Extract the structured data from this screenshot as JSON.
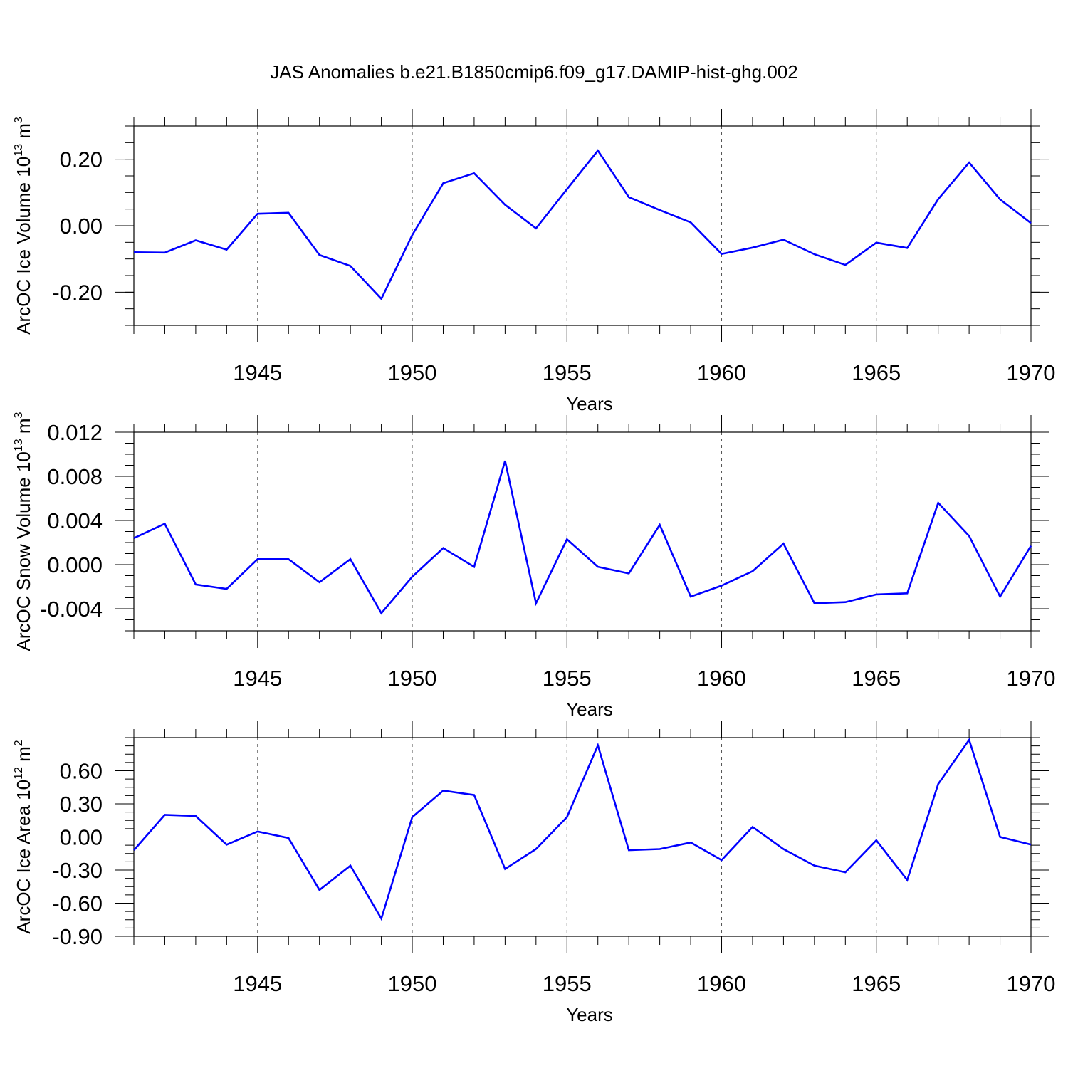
{
  "figure_title": "JAS Anomalies b.e21.B1850cmip6.f09_g17.DAMIP-hist-ghg.002",
  "line_color": "#0000ff",
  "chart_data": [
    {
      "type": "line",
      "xlabel": "Years",
      "ylabel_main": "ArcOC Ice Volume 10",
      "ylabel_exp": "13",
      "ylabel_unit": " m",
      "ylabel_unit_exp": "3",
      "xlim": [
        1941,
        1970
      ],
      "ylim": [
        -0.3,
        0.3
      ],
      "x_ticks": [
        1945,
        1950,
        1955,
        1960,
        1965,
        1970
      ],
      "x_tick_labels": [
        "1945",
        "1950",
        "1955",
        "1960",
        "1965",
        "1970"
      ],
      "y_ticks": [
        0.2,
        0.0,
        -0.2
      ],
      "y_tick_labels": [
        "0.20",
        "0.00",
        "-0.20"
      ],
      "y_minor_step": 0.05,
      "grid": "dashed vertical lines at major x ticks",
      "x": [
        1941,
        1942,
        1943,
        1944,
        1945,
        1946,
        1947,
        1948,
        1949,
        1950,
        1951,
        1952,
        1953,
        1954,
        1955,
        1956,
        1957,
        1958,
        1959,
        1960,
        1961,
        1962,
        1963,
        1964,
        1965,
        1966,
        1967,
        1968,
        1969,
        1970
      ],
      "values": [
        -0.08,
        -0.081,
        -0.044,
        -0.072,
        0.036,
        0.039,
        -0.088,
        -0.121,
        -0.22,
        -0.028,
        0.128,
        0.158,
        0.063,
        -0.008,
        0.11,
        0.226,
        0.086,
        0.047,
        0.01,
        -0.085,
        -0.066,
        -0.042,
        -0.086,
        -0.118,
        -0.051,
        -0.067,
        0.08,
        0.19,
        0.079,
        0.008
      ]
    },
    {
      "type": "line",
      "xlabel": "Years",
      "ylabel_main": "ArcOC Snow Volume 10",
      "ylabel_exp": "13",
      "ylabel_unit": " m",
      "ylabel_unit_exp": "3",
      "xlim": [
        1941,
        1970
      ],
      "ylim": [
        -0.006,
        0.012
      ],
      "x_ticks": [
        1945,
        1950,
        1955,
        1960,
        1965,
        1970
      ],
      "x_tick_labels": [
        "1945",
        "1950",
        "1955",
        "1960",
        "1965",
        "1970"
      ],
      "y_ticks": [
        0.012,
        0.008,
        0.004,
        0.0,
        -0.004
      ],
      "y_tick_labels": [
        "0.012",
        "0.008",
        "0.004",
        "0.000",
        "-0.004"
      ],
      "y_minor_step": 0.001,
      "grid": "dashed vertical lines at major x ticks",
      "x": [
        1941,
        1942,
        1943,
        1944,
        1945,
        1946,
        1947,
        1948,
        1949,
        1950,
        1951,
        1952,
        1953,
        1954,
        1955,
        1956,
        1957,
        1958,
        1959,
        1960,
        1961,
        1962,
        1963,
        1964,
        1965,
        1966,
        1967,
        1968,
        1969,
        1970
      ],
      "values": [
        0.0024,
        0.0037,
        -0.0018,
        -0.0022,
        0.0005,
        0.0005,
        -0.0016,
        0.0005,
        -0.0044,
        -0.0011,
        0.0015,
        -0.0002,
        0.0094,
        -0.0035,
        0.0023,
        -0.0002,
        -0.0008,
        0.0036,
        -0.0029,
        -0.0019,
        -0.0006,
        0.0019,
        -0.0035,
        -0.0034,
        -0.0027,
        -0.0026,
        0.0056,
        0.0026,
        -0.0029,
        0.0017
      ]
    },
    {
      "type": "line",
      "xlabel": "Years",
      "ylabel_main": "ArcOC Ice Area 10",
      "ylabel_exp": "12",
      "ylabel_unit": " m",
      "ylabel_unit_exp": "2",
      "xlim": [
        1941,
        1970
      ],
      "ylim": [
        -0.9,
        0.9
      ],
      "x_ticks": [
        1945,
        1950,
        1955,
        1960,
        1965,
        1970
      ],
      "x_tick_labels": [
        "1945",
        "1950",
        "1955",
        "1960",
        "1965",
        "1970"
      ],
      "y_ticks": [
        0.6,
        0.3,
        0.0,
        -0.3,
        -0.6,
        -0.9
      ],
      "y_tick_labels": [
        "0.60",
        "0.30",
        "0.00",
        "-0.30",
        "-0.60",
        "-0.90"
      ],
      "y_minor_step": 0.075,
      "grid": "dashed vertical lines at major x ticks",
      "x": [
        1941,
        1942,
        1943,
        1944,
        1945,
        1946,
        1947,
        1948,
        1949,
        1950,
        1951,
        1952,
        1953,
        1954,
        1955,
        1956,
        1957,
        1958,
        1959,
        1960,
        1961,
        1962,
        1963,
        1964,
        1965,
        1966,
        1967,
        1968,
        1969,
        1970
      ],
      "values": [
        -0.12,
        0.2,
        0.19,
        -0.07,
        0.05,
        -0.01,
        -0.48,
        -0.26,
        -0.74,
        0.18,
        0.42,
        0.38,
        -0.29,
        -0.11,
        0.18,
        0.83,
        -0.12,
        -0.11,
        -0.05,
        -0.21,
        0.09,
        -0.11,
        -0.26,
        -0.32,
        -0.03,
        -0.39,
        0.48,
        0.88,
        0.0,
        -0.07
      ]
    }
  ]
}
